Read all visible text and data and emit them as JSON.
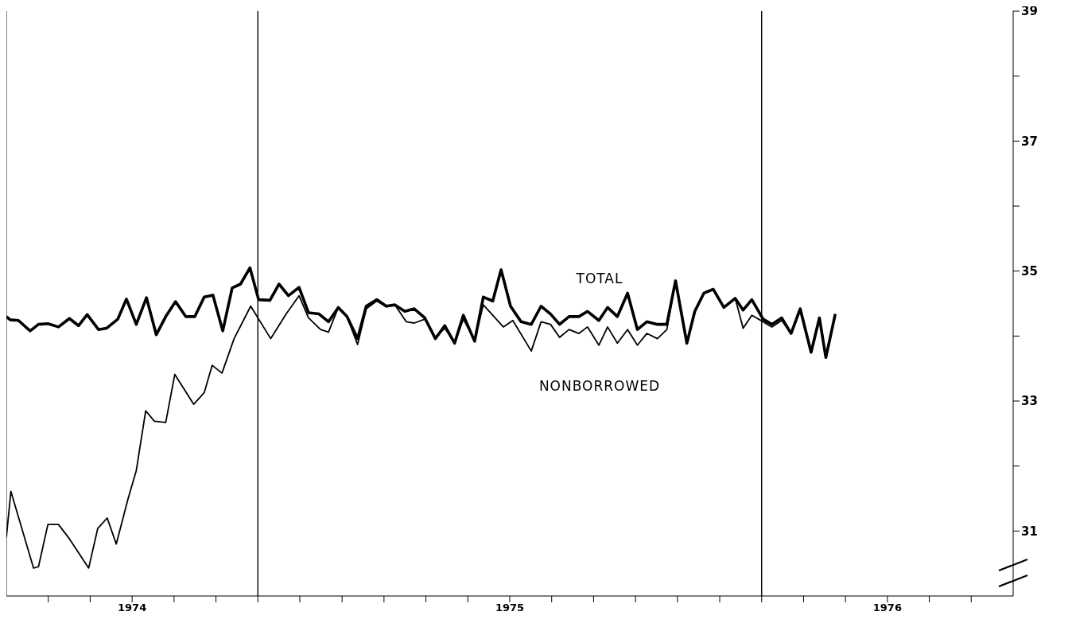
{
  "chart_data": {
    "type": "line",
    "xlim": [
      1973.667,
      1976.333
    ],
    "xticks": [
      {
        "value": 1973.778,
        "label": null
      },
      {
        "value": 1973.889,
        "label": null
      },
      {
        "value": 1974,
        "label": "1974"
      },
      {
        "value": 1974.111,
        "label": null
      },
      {
        "value": 1974.222,
        "label": null
      },
      {
        "value": 1974.333,
        "label": null
      },
      {
        "value": 1974.444,
        "label": null
      },
      {
        "value": 1974.556,
        "label": null
      },
      {
        "value": 1974.667,
        "label": null
      },
      {
        "value": 1974.778,
        "label": null
      },
      {
        "value": 1974.889,
        "label": null
      },
      {
        "value": 1975,
        "label": "1975"
      },
      {
        "value": 1975.111,
        "label": null
      },
      {
        "value": 1975.222,
        "label": null
      },
      {
        "value": 1975.333,
        "label": null
      },
      {
        "value": 1975.444,
        "label": null
      },
      {
        "value": 1975.556,
        "label": null
      },
      {
        "value": 1975.667,
        "label": null
      },
      {
        "value": 1975.778,
        "label": null
      },
      {
        "value": 1975.889,
        "label": null
      },
      {
        "value": 1976,
        "label": "1976"
      },
      {
        "value": 1976.111,
        "label": null
      },
      {
        "value": 1976.222,
        "label": null
      }
    ],
    "ylim": [
      30,
      39
    ],
    "yticks": [
      31,
      {
        "value": 32,
        "label": null
      },
      33,
      {
        "value": 34,
        "label": null
      },
      35,
      {
        "value": 36,
        "label": null
      },
      37,
      {
        "value": 38,
        "label": null
      },
      39
    ],
    "marker": "none",
    "line_style": "solid",
    "ref_lines": [
      {
        "axis": "x",
        "value": 1974.333,
        "color": "#000000"
      },
      {
        "axis": "x",
        "value": 1975.667,
        "color": "#000000"
      }
    ],
    "series": [
      {
        "name": "TOTAL",
        "color": "#000000",
        "x": [
          1973.667,
          1973.677,
          1973.699,
          1973.73,
          1973.752,
          1973.777,
          1973.805,
          1973.834,
          1973.858,
          1973.881,
          1973.911,
          1973.932,
          1973.962,
          1973.985,
          1974.011,
          1974.038,
          1974.064,
          1974.089,
          1974.115,
          1974.142,
          1974.166,
          1974.191,
          1974.214,
          1974.24,
          1974.265,
          1974.287,
          1974.312,
          1974.335,
          1974.365,
          1974.389,
          1974.414,
          1974.442,
          1974.467,
          1974.495,
          1974.52,
          1974.546,
          1974.569,
          1974.597,
          1974.62,
          1974.648,
          1974.673,
          1974.696,
          1974.722,
          1974.747,
          1974.775,
          1974.803,
          1974.828,
          1974.854,
          1974.877,
          1974.907,
          1974.93,
          1974.955,
          1974.977,
          1975.002,
          1975.03,
          1975.057,
          1975.083,
          1975.108,
          1975.132,
          1975.157,
          1975.183,
          1975.206,
          1975.236,
          1975.259,
          1975.285,
          1975.312,
          1975.338,
          1975.363,
          1975.391,
          1975.416,
          1975.439,
          1975.469,
          1975.49,
          1975.514,
          1975.539,
          1975.567,
          1975.597,
          1975.618,
          1975.641,
          1975.671,
          1975.694,
          1975.72,
          1975.745,
          1975.769,
          1975.798,
          1975.82,
          1975.837,
          1975.862
        ],
        "values": [
          34.3,
          34.25,
          34.24,
          34.08,
          34.18,
          34.19,
          34.14,
          34.27,
          34.16,
          34.33,
          34.1,
          34.12,
          34.26,
          34.57,
          34.18,
          34.59,
          34.02,
          34.3,
          34.53,
          34.3,
          34.3,
          34.6,
          34.63,
          34.08,
          34.74,
          34.8,
          35.05,
          34.56,
          34.55,
          34.8,
          34.62,
          34.75,
          34.36,
          34.34,
          34.22,
          34.44,
          34.3,
          33.96,
          34.46,
          34.56,
          34.46,
          34.48,
          34.38,
          34.42,
          34.28,
          33.96,
          34.16,
          33.89,
          34.32,
          33.92,
          34.6,
          34.54,
          35.02,
          34.46,
          34.22,
          34.18,
          34.46,
          34.34,
          34.18,
          34.3,
          34.3,
          34.38,
          34.24,
          34.44,
          34.3,
          34.66,
          34.1,
          34.22,
          34.18,
          34.18,
          34.85,
          33.89,
          34.38,
          34.66,
          34.72,
          34.44,
          34.58,
          34.4,
          34.56,
          34.26,
          34.18,
          34.28,
          34.04,
          34.42,
          33.75,
          34.28,
          33.67,
          34.34
        ]
      },
      {
        "name": "NONBORROWED",
        "color": "#000000",
        "x": [
          1973.667,
          1973.679,
          1973.739,
          1973.752,
          1973.777,
          1973.805,
          1973.834,
          1973.885,
          1973.909,
          1973.934,
          1973.958,
          1973.989,
          1974.011,
          1974.036,
          1974.059,
          1974.089,
          1974.113,
          1974.163,
          1974.191,
          1974.212,
          1974.238,
          1974.27,
          1974.314,
          1974.367,
          1974.408,
          1974.442,
          1974.467,
          1974.499,
          1974.52,
          1974.546,
          1974.569,
          1974.597,
          1974.62,
          1974.648,
          1974.673,
          1974.696,
          1974.726,
          1974.747,
          1974.775,
          1974.803,
          1974.828,
          1974.854,
          1974.877,
          1974.907,
          1974.93,
          1974.983,
          1975.008,
          1975.057,
          1975.083,
          1975.108,
          1975.132,
          1975.157,
          1975.183,
          1975.206,
          1975.236,
          1975.259,
          1975.285,
          1975.312,
          1975.338,
          1975.363,
          1975.391,
          1975.416,
          1975.439,
          1975.469,
          1975.49,
          1975.514,
          1975.539,
          1975.567,
          1975.597,
          1975.618,
          1975.641,
          1975.671,
          1975.694,
          1975.72,
          1975.745,
          1975.769,
          1975.798,
          1975.82,
          1975.837,
          1975.862
        ],
        "values": [
          30.9,
          31.61,
          30.43,
          30.45,
          31.1,
          31.1,
          30.88,
          30.43,
          31.04,
          31.2,
          30.8,
          31.49,
          31.93,
          32.85,
          32.69,
          32.67,
          33.41,
          32.95,
          33.13,
          33.55,
          33.43,
          33.96,
          34.46,
          33.96,
          34.34,
          34.62,
          34.28,
          34.1,
          34.06,
          34.44,
          34.3,
          33.87,
          34.42,
          34.54,
          34.45,
          34.48,
          34.22,
          34.2,
          34.26,
          33.98,
          34.12,
          33.9,
          34.26,
          33.94,
          34.48,
          34.14,
          34.24,
          33.77,
          34.22,
          34.18,
          33.98,
          34.1,
          34.04,
          34.14,
          33.86,
          34.14,
          33.89,
          34.1,
          33.86,
          34.04,
          33.96,
          34.1,
          34.85,
          33.89,
          34.38,
          34.66,
          34.72,
          34.44,
          34.58,
          34.12,
          34.32,
          34.22,
          34.14,
          34.24,
          34.04,
          34.42,
          33.75,
          34.28,
          33.67,
          34.34
        ]
      }
    ]
  }
}
